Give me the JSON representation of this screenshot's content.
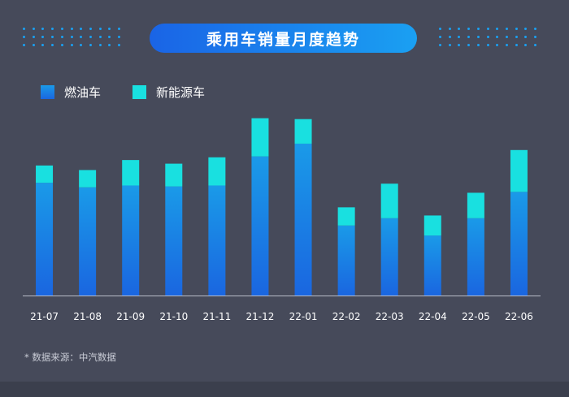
{
  "title": "乘用车销量月度趋势",
  "footnote": "* 数据来源：中汽数据",
  "colors": {
    "background": "#464a5a",
    "fuel_top": "#1a9ae8",
    "fuel_bottom": "#1a66e0",
    "nev": "#19e0e0",
    "axis": "#b9bdc8",
    "tick_text": "#ffffff",
    "title_left": "#1a64e6",
    "title_right": "#1aa0f2"
  },
  "chart_data": {
    "type": "bar",
    "stacked": true,
    "categories": [
      "21-07",
      "21-08",
      "21-09",
      "21-10",
      "21-11",
      "21-12",
      "22-01",
      "22-02",
      "22-03",
      "22-04",
      "22-05",
      "22-06"
    ],
    "series": [
      {
        "name": "燃油车",
        "values": [
          124,
          119,
          121,
          120,
          121,
          153,
          167,
          77,
          85,
          66,
          85,
          114
        ]
      },
      {
        "name": "新能源车",
        "values": [
          19,
          19,
          28,
          25,
          31,
          42,
          27,
          20,
          38,
          22,
          28,
          46
        ]
      }
    ],
    "legend": "top-left",
    "grid": false,
    "ylim": [
      0,
      200
    ],
    "y_axis_visible": false
  }
}
